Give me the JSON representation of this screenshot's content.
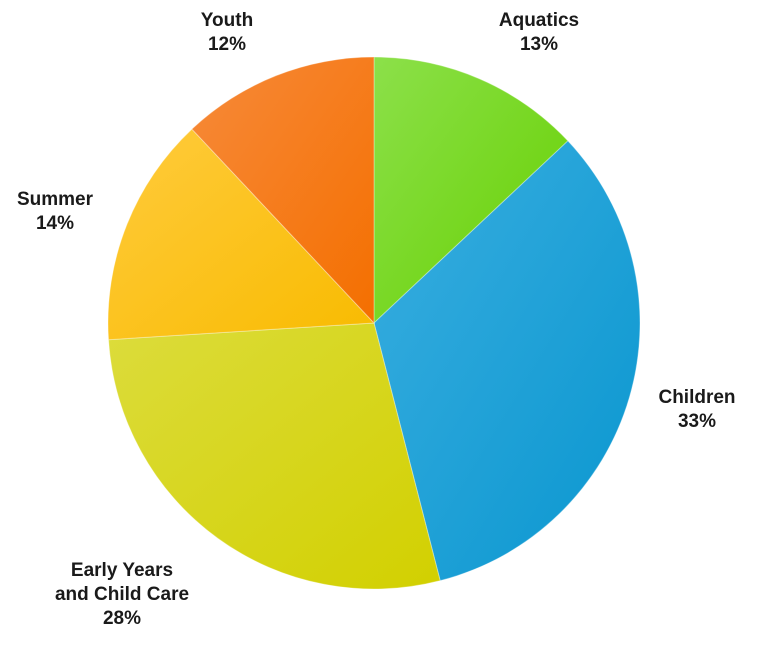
{
  "chart_data": {
    "type": "pie",
    "title": "",
    "start_angle_deg": 0,
    "direction": "clockwise",
    "legend": "none",
    "slices": [
      {
        "key": "aquatics",
        "lines": [
          "Aquatics"
        ],
        "value": 13,
        "value_label": "13%",
        "color": "#66d000",
        "color_light": "#8ce04a"
      },
      {
        "key": "children",
        "lines": [
          "Children"
        ],
        "value": 33,
        "value_label": "33%",
        "color": "#0996cf",
        "color_light": "#3aaee0"
      },
      {
        "key": "early-years",
        "lines": [
          "Early Years",
          "and Child Care"
        ],
        "value": 28,
        "value_label": "28%",
        "color": "#d2d000",
        "color_light": "#dcdc3c"
      },
      {
        "key": "summer",
        "lines": [
          "Summer"
        ],
        "value": 14,
        "value_label": "14%",
        "color": "#f8bb00",
        "color_light": "#ffcb3d"
      },
      {
        "key": "youth",
        "lines": [
          "Youth"
        ],
        "value": 12,
        "value_label": "12%",
        "color": "#f46f00",
        "color_light": "#f78a3a"
      }
    ]
  }
}
